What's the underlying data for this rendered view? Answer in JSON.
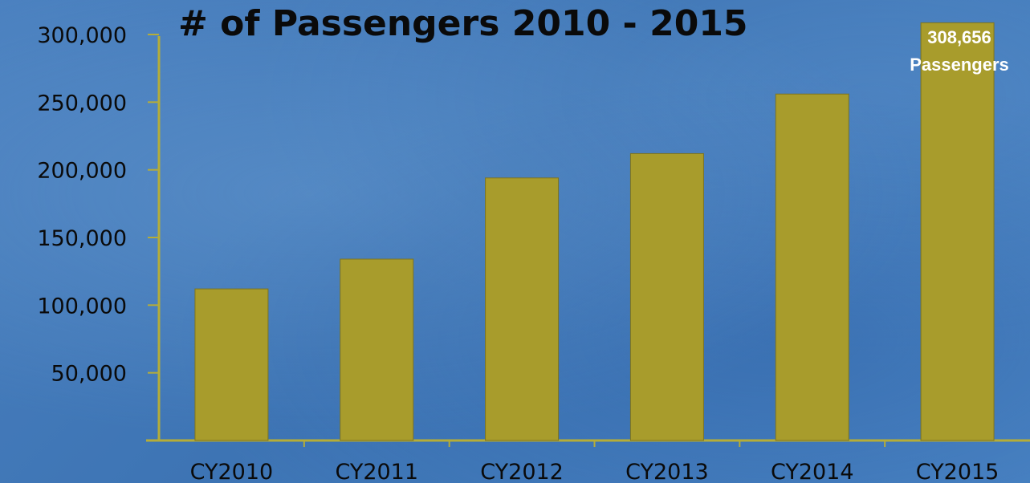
{
  "chart_data": {
    "type": "bar",
    "title": "# of Passengers 2010 - 2015",
    "categories": [
      "CY2010",
      "CY2011",
      "CY2012",
      "CY2013",
      "CY2014",
      "CY2015"
    ],
    "values": [
      112000,
      134000,
      194000,
      212000,
      256000,
      308656
    ],
    "ylim": [
      0,
      310000
    ],
    "yticks": [
      50000,
      100000,
      150000,
      200000,
      250000,
      300000
    ],
    "ytick_labels": [
      "50,000",
      "100,000",
      "150,000",
      "200,000",
      "250,000",
      "300,000"
    ],
    "annotation": {
      "value": "308,656",
      "label": "Passengers"
    },
    "grid": false,
    "colors": {
      "bar": "#a89c2c",
      "bar_edge": "#7d7420",
      "axis": "#b5ad38",
      "text": "#0a0a0a",
      "annotation": "#ffffff"
    }
  }
}
